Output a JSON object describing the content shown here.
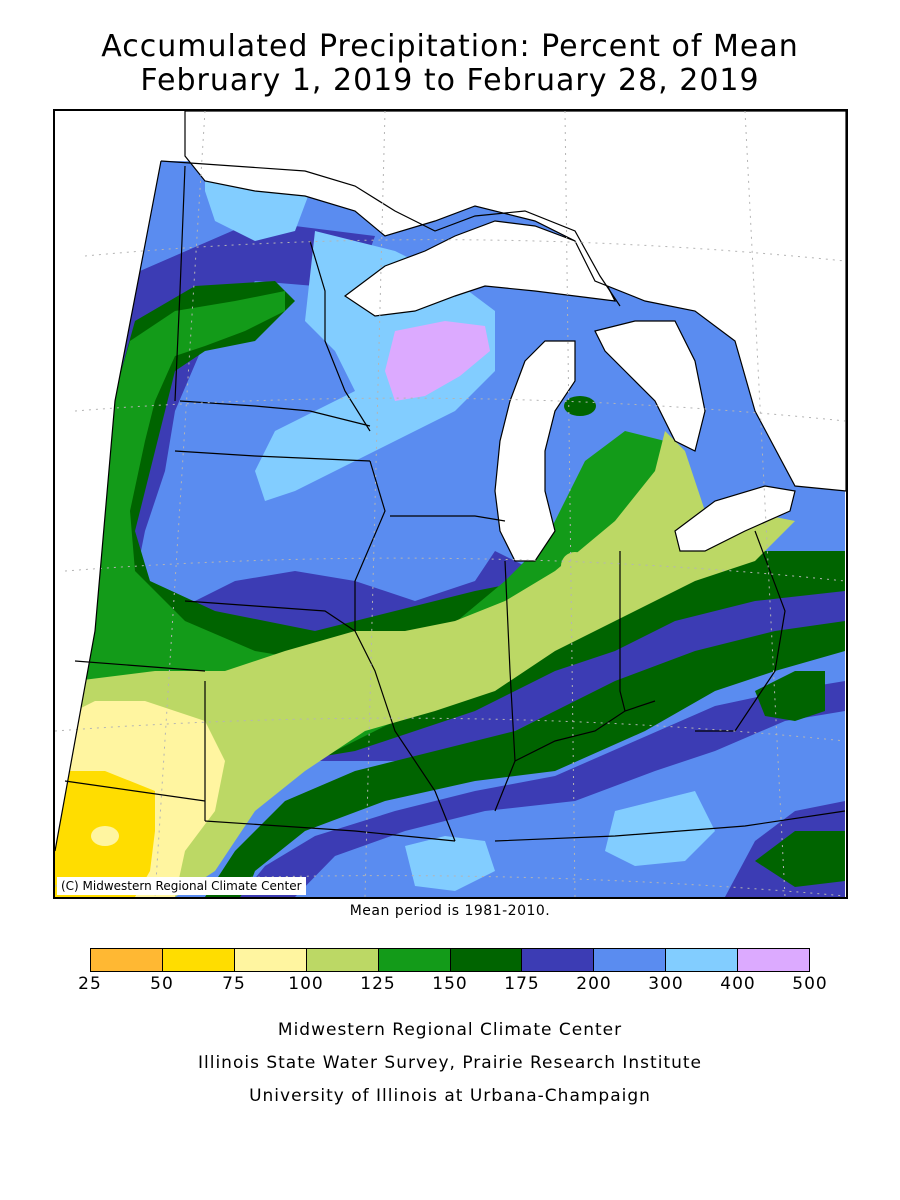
{
  "title_line1": "Accumulated Precipitation: Percent of Mean",
  "title_line2": "February 1, 2019 to February 28, 2019",
  "copyright": "(C) Midwestern Regional Climate Center",
  "mean_period": "Mean period is 1981-2010.",
  "legend": {
    "colors": [
      "#ffb833",
      "#ffdd00",
      "#fff5a0",
      "#bcd865",
      "#139b19",
      "#006400",
      "#3c3cb4",
      "#5a8cf0",
      "#82cdff",
      "#dcaaff"
    ],
    "ticks": [
      "25",
      "50",
      "75",
      "100",
      "125",
      "150",
      "175",
      "200",
      "300",
      "400",
      "500"
    ]
  },
  "credits": [
    "Midwestern Regional Climate Center",
    "Illinois State Water Survey, Prairie Research Institute",
    "University of Illinois at Urbana-Champaign"
  ],
  "map": {
    "colors": {
      "c25": "#ffb833",
      "c50": "#ffdd00",
      "c75": "#fff5a0",
      "c100": "#bcd865",
      "c125": "#139b19",
      "c150": "#006400",
      "c175": "#3c3cb4",
      "c200": "#5a8cf0",
      "c300": "#82cdff",
      "c400": "#dcaaff",
      "water": "#ffffff",
      "border": "#000000",
      "grid": "#b4b4b4"
    }
  }
}
